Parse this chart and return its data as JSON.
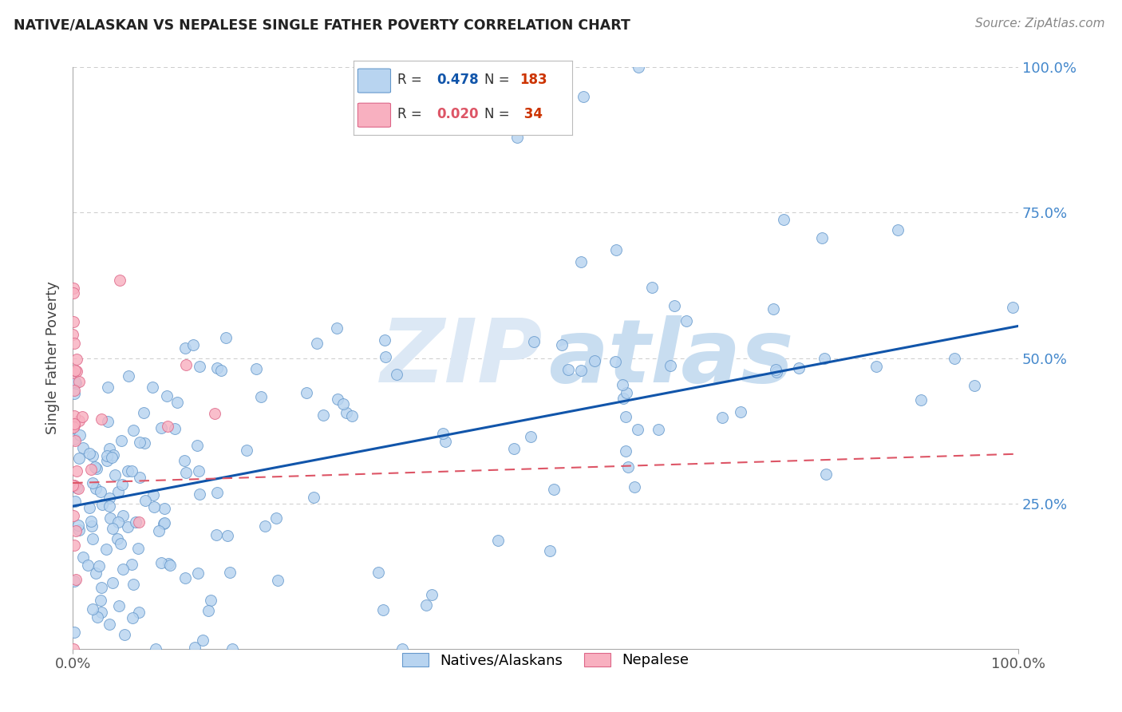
{
  "title": "NATIVE/ALASKAN VS NEPALESE SINGLE FATHER POVERTY CORRELATION CHART",
  "source": "Source: ZipAtlas.com",
  "ylabel": "Single Father Poverty",
  "legend_blue_r": "0.478",
  "legend_blue_n": "183",
  "legend_pink_r": "0.020",
  "legend_pink_n": "34",
  "legend_label_blue": "Natives/Alaskans",
  "legend_label_pink": "Nepalese",
  "blue_color": "#b8d4f0",
  "blue_edge": "#6699cc",
  "pink_color": "#f8b0c0",
  "pink_edge": "#dd6688",
  "trendline_blue": "#1155aa",
  "trendline_pink": "#dd5566",
  "grid_color": "#cccccc",
  "title_color": "#222222",
  "source_color": "#888888",
  "ytick_color": "#4488cc",
  "watermark_zip_color": "#dce8f5",
  "watermark_atlas_color": "#c8ddf0",
  "blue_intercept": 0.245,
  "blue_slope": 0.31,
  "pink_intercept": 0.285,
  "pink_slope": 0.05
}
